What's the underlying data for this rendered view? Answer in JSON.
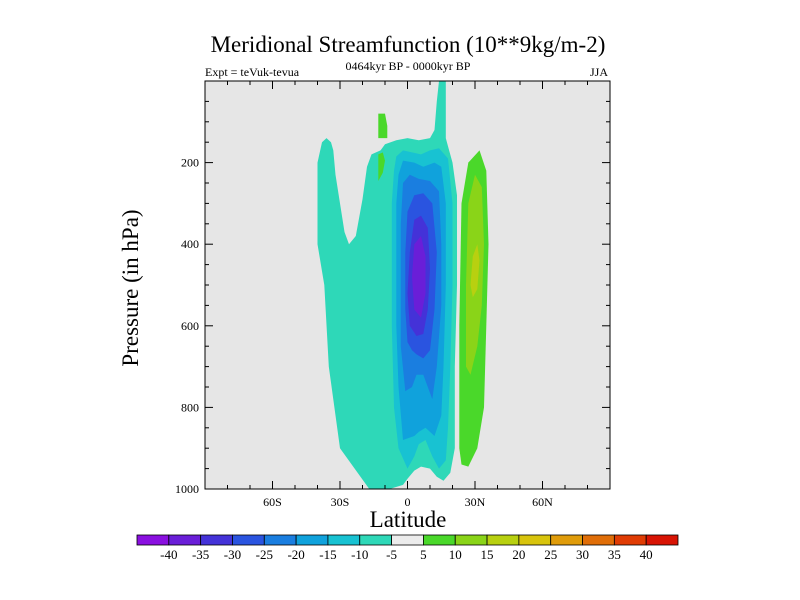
{
  "chart_data": {
    "type": "contour",
    "title": "Meridional Streamfunction (10**9kg/m-2)",
    "subtitle_left": "Expt = teVuk-tevua",
    "subtitle_center": "0464kyr BP - 0000kyr BP",
    "subtitle_right": "JJA",
    "xlabel": "Latitude",
    "ylabel": "Pressure (in hPa)",
    "xlim": [
      -90,
      90
    ],
    "ylim": [
      1000,
      0
    ],
    "x_ticks": [
      {
        "value": -60,
        "label": "60S"
      },
      {
        "value": -30,
        "label": "30S"
      },
      {
        "value": 0,
        "label": "0"
      },
      {
        "value": 30,
        "label": "30N"
      },
      {
        "value": 60,
        "label": "60N"
      }
    ],
    "y_ticks": [
      {
        "value": 200,
        "label": "200"
      },
      {
        "value": 400,
        "label": "400"
      },
      {
        "value": 600,
        "label": "600"
      },
      {
        "value": 800,
        "label": "800"
      },
      {
        "value": 1000,
        "label": "1000"
      }
    ],
    "plot_background": "#e6e6e6",
    "colorbar": {
      "labels": [
        "-40",
        "-35",
        "-30",
        "-25",
        "-20",
        "-15",
        "-10",
        "-5",
        "5",
        "10",
        "15",
        "20",
        "25",
        "30",
        "35",
        "40"
      ],
      "colors": [
        "#8a10e0",
        "#6a1ed8",
        "#4432d8",
        "#2a54e0",
        "#1a7ee0",
        "#10a2dc",
        "#18c2d2",
        "#2ed8b8",
        "#ececec",
        "#4ad82a",
        "#8ad418",
        "#b8d010",
        "#d8c40c",
        "#e09c0a",
        "#e06e08",
        "#e03c04",
        "#d81404"
      ]
    },
    "contours": [
      {
        "name": "neg-5",
        "level": -5,
        "color": "#2ed8b8",
        "points": [
          [
            -17,
            1000
          ],
          [
            -30,
            900
          ],
          [
            -35,
            700
          ],
          [
            -37,
            500
          ],
          [
            -40,
            400
          ],
          [
            -40,
            300
          ],
          [
            -40,
            200
          ],
          [
            -38,
            150
          ],
          [
            -36,
            140
          ],
          [
            -34,
            150
          ],
          [
            -33,
            170
          ],
          [
            -32,
            230
          ],
          [
            -30,
            300
          ],
          [
            -28,
            370
          ],
          [
            -26,
            400
          ],
          [
            -23,
            380
          ],
          [
            -20,
            290
          ],
          [
            -18,
            210
          ],
          [
            -16,
            180
          ],
          [
            -12,
            170
          ],
          [
            -10,
            155
          ],
          [
            -5,
            145
          ],
          [
            0,
            140
          ],
          [
            5,
            145
          ],
          [
            10,
            140
          ],
          [
            12,
            120
          ],
          [
            13,
            50
          ],
          [
            14,
            0
          ],
          [
            17,
            0
          ],
          [
            17,
            140
          ],
          [
            18,
            160
          ],
          [
            20,
            200
          ],
          [
            22,
            280
          ],
          [
            22,
            500
          ],
          [
            21,
            700
          ],
          [
            21,
            800
          ],
          [
            21,
            900
          ],
          [
            19,
            960
          ],
          [
            16,
            980
          ],
          [
            13,
            970
          ],
          [
            10,
            950
          ],
          [
            6,
            945
          ],
          [
            3,
            955
          ],
          [
            0,
            975
          ],
          [
            -2,
            990
          ],
          [
            -8,
            1000
          ]
        ]
      },
      {
        "name": "neg-5-upper-a",
        "level": -5,
        "color": "#4ad82a",
        "points": [
          [
            -13,
            80
          ],
          [
            -10,
            80
          ],
          [
            -9,
            110
          ],
          [
            -9,
            140
          ],
          [
            -13,
            140
          ]
        ]
      },
      {
        "name": "neg-5-upper-b",
        "level": -5,
        "color": "#4ad82a",
        "points": [
          [
            -13,
            245
          ],
          [
            -11,
            225
          ],
          [
            -10,
            195
          ],
          [
            -11,
            175
          ],
          [
            -13,
            180
          ]
        ]
      },
      {
        "name": "neg-10",
        "level": -10,
        "color": "#18c2d2",
        "points": [
          [
            -4,
            900
          ],
          [
            -6,
            800
          ],
          [
            -7,
            600
          ],
          [
            -7,
            500
          ],
          [
            -7,
            300
          ],
          [
            -6,
            220
          ],
          [
            -5,
            185
          ],
          [
            -2,
            170
          ],
          [
            2,
            175
          ],
          [
            6,
            180
          ],
          [
            10,
            170
          ],
          [
            14,
            165
          ],
          [
            18,
            190
          ],
          [
            20,
            300
          ],
          [
            20,
            500
          ],
          [
            19,
            700
          ],
          [
            18,
            850
          ],
          [
            17,
            930
          ],
          [
            14,
            950
          ],
          [
            11,
            920
          ],
          [
            8,
            880
          ],
          [
            5,
            890
          ],
          [
            3,
            920
          ],
          [
            0,
            950
          ]
        ]
      },
      {
        "name": "neg-15",
        "level": -15,
        "color": "#10a2dc",
        "points": [
          [
            -2,
            880
          ],
          [
            -4,
            750
          ],
          [
            -5,
            600
          ],
          [
            -5,
            450
          ],
          [
            -5,
            300
          ],
          [
            -4,
            230
          ],
          [
            -2,
            195
          ],
          [
            3,
            200
          ],
          [
            7,
            210
          ],
          [
            12,
            200
          ],
          [
            15,
            210
          ],
          [
            17,
            300
          ],
          [
            17,
            500
          ],
          [
            16,
            700
          ],
          [
            15,
            820
          ],
          [
            12,
            870
          ],
          [
            8,
            850
          ],
          [
            5,
            860
          ],
          [
            3,
            870
          ]
        ]
      },
      {
        "name": "neg-20",
        "level": -20,
        "color": "#1a7ee0",
        "points": [
          [
            -1,
            760
          ],
          [
            -3,
            650
          ],
          [
            -3,
            500
          ],
          [
            -3,
            350
          ],
          [
            -2,
            250
          ],
          [
            1,
            230
          ],
          [
            5,
            240
          ],
          [
            10,
            245
          ],
          [
            14,
            270
          ],
          [
            15,
            400
          ],
          [
            15,
            550
          ],
          [
            13,
            700
          ],
          [
            11,
            780
          ],
          [
            7,
            720
          ],
          [
            4,
            720
          ],
          [
            2,
            750
          ]
        ]
      },
      {
        "name": "neg-25",
        "level": -25,
        "color": "#2a54e0",
        "points": [
          [
            0,
            640
          ],
          [
            -1,
            560
          ],
          [
            -1,
            420
          ],
          [
            0,
            320
          ],
          [
            3,
            280
          ],
          [
            7,
            275
          ],
          [
            11,
            300
          ],
          [
            13,
            420
          ],
          [
            12,
            560
          ],
          [
            10,
            660
          ],
          [
            7,
            680
          ],
          [
            4,
            670
          ],
          [
            2,
            660
          ]
        ]
      },
      {
        "name": "neg-30",
        "level": -30,
        "color": "#4432d8",
        "points": [
          [
            1,
            600
          ],
          [
            0,
            520
          ],
          [
            1,
            420
          ],
          [
            3,
            340
          ],
          [
            6,
            330
          ],
          [
            9,
            360
          ],
          [
            10,
            460
          ],
          [
            9,
            560
          ],
          [
            7,
            620
          ],
          [
            4,
            625
          ]
        ]
      },
      {
        "name": "neg-35",
        "level": -35,
        "color": "#6a1ed8",
        "points": [
          [
            3,
            560
          ],
          [
            2,
            480
          ],
          [
            3,
            400
          ],
          [
            6,
            380
          ],
          [
            8,
            430
          ],
          [
            8,
            520
          ],
          [
            6,
            580
          ]
        ]
      },
      {
        "name": "pos-5",
        "level": 5,
        "color": "#4ad82a",
        "points": [
          [
            23,
            900
          ],
          [
            23,
            600
          ],
          [
            24,
            300
          ],
          [
            27,
            200
          ],
          [
            32,
            170
          ],
          [
            35,
            220
          ],
          [
            36,
            400
          ],
          [
            35,
            600
          ],
          [
            34,
            800
          ],
          [
            31,
            900
          ],
          [
            27,
            945
          ],
          [
            24,
            940
          ]
        ]
      },
      {
        "name": "pos-10",
        "level": 10,
        "color": "#8ad418",
        "points": [
          [
            26,
            700
          ],
          [
            26,
            500
          ],
          [
            27,
            300
          ],
          [
            30,
            230
          ],
          [
            33,
            260
          ],
          [
            34,
            400
          ],
          [
            33,
            550
          ],
          [
            31,
            650
          ],
          [
            28,
            720
          ]
        ]
      },
      {
        "name": "pos-15",
        "level": 15,
        "color": "#b8d010",
        "points": [
          [
            28,
            500
          ],
          [
            29,
            430
          ],
          [
            31,
            400
          ],
          [
            32,
            440
          ],
          [
            31,
            510
          ],
          [
            29,
            530
          ]
        ]
      }
    ]
  }
}
